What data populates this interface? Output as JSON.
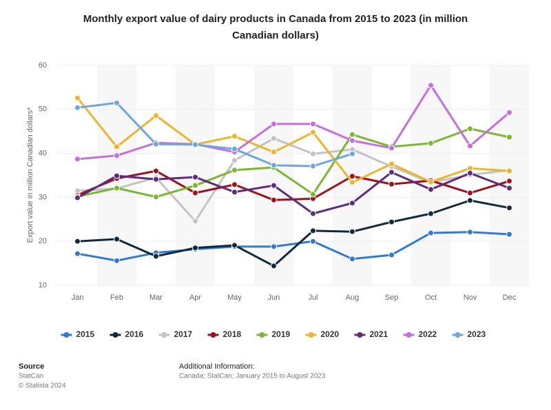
{
  "chart_data": {
    "type": "line",
    "title": "Monthly export value of dairy products in Canada from 2015 to 2023 (in million",
    "title_line2": "Canadian dollars)",
    "y_label": "Export value in million Canadian dollars*",
    "categories": [
      "Jan",
      "Feb",
      "Mar",
      "Apr",
      "May",
      "Jun",
      "Jul",
      "Aug",
      "Sep",
      "Oct",
      "Nov",
      "Dec"
    ],
    "ylim": [
      10,
      60
    ],
    "yticks": [
      10,
      20,
      30,
      40,
      50,
      60
    ],
    "grid": true,
    "legend": "bottom",
    "series": [
      {
        "name": "2015",
        "color": "#2f7ad6",
        "values": [
          17.2,
          15.6,
          17.4,
          18.2,
          18.8,
          18.8,
          20,
          16,
          16.9,
          21.9,
          22.1,
          21.6
        ]
      },
      {
        "name": "2016",
        "color": "#0f2a3d",
        "values": [
          20,
          20.5,
          16.6,
          18.5,
          19.1,
          14.4,
          22.4,
          22.2,
          24.4,
          26.3,
          29.3,
          27.6
        ]
      },
      {
        "name": "2017",
        "color": "#c3c3c3",
        "values": [
          31.5,
          32,
          34.5,
          24.6,
          38.4,
          43.4,
          39.9,
          40.9,
          37,
          33.4,
          35.1,
          36.2
        ]
      },
      {
        "name": "2018",
        "color": "#a3101a",
        "values": [
          30.5,
          34.3,
          36,
          31,
          32.9,
          29.4,
          29.7,
          34.8,
          33,
          33.8,
          31,
          33.7
        ]
      },
      {
        "name": "2019",
        "color": "#7ab82e",
        "values": [
          30.2,
          32.1,
          30.1,
          32.7,
          36.2,
          36.8,
          30.7,
          44.3,
          41.5,
          42.3,
          45.6,
          43.7
        ]
      },
      {
        "name": "2020",
        "color": "#f0b42a",
        "values": [
          52.6,
          41.5,
          48.6,
          42,
          43.9,
          40.3,
          44.8,
          33.4,
          37.6,
          33.5,
          36.6,
          36
        ]
      },
      {
        "name": "2021",
        "color": "#5c2c7e",
        "values": [
          29.9,
          34.9,
          34.1,
          34.6,
          31.2,
          32.7,
          26.3,
          28.7,
          35.7,
          31.8,
          35.5,
          32.1
        ]
      },
      {
        "name": "2022",
        "color": "#c66de0",
        "values": [
          38.7,
          39.5,
          42.4,
          42.1,
          40.3,
          46.7,
          46.7,
          42.9,
          41.2,
          55.5,
          41.7,
          49.3
        ]
      },
      {
        "name": "2023",
        "color": "#6ea6e2",
        "values": [
          50.4,
          51.5,
          42.1,
          42,
          41,
          37.3,
          37.1,
          39.9,
          null,
          null,
          null,
          null
        ]
      }
    ]
  },
  "footer": {
    "source_title": "Source",
    "source": "StatCan",
    "copyright": "© Statista 2024",
    "info_title": "Additional Information:",
    "info": "Canada; StatCan; January 2015 to August 2023"
  }
}
